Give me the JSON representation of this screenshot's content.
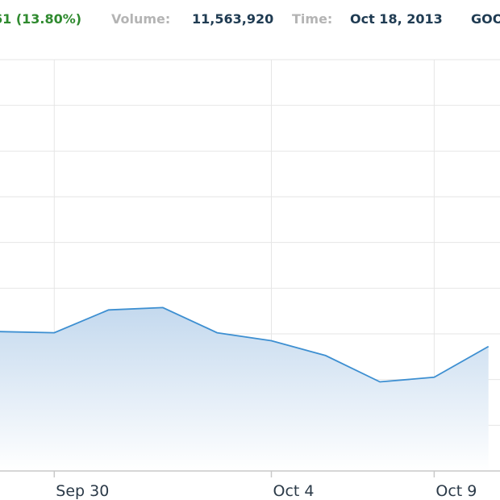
{
  "header": {
    "change": "61 (13.80%)",
    "volume_label": "Volume:",
    "volume_value": "11,563,920",
    "time_label": "Time:",
    "time_value": "Oct 18, 2013",
    "ticker": "GOO"
  },
  "colors": {
    "line": "#3d8fd1",
    "fill_top": "#c4d9ee",
    "fill_bottom": "#ffffff",
    "grid": "#e6e6e6",
    "axis": "#c9c9c9",
    "change": "#2f8a2f",
    "header_label": "#b4b4b4",
    "header_value": "#1f3b52",
    "tick_text": "#2b3a48"
  },
  "chart_data": {
    "type": "area",
    "title": "",
    "xlabel": "",
    "ylabel": "",
    "x_tick_labels": [
      "Sep 30",
      "Oct 4",
      "Oct 9"
    ],
    "x": [
      "2013-09-27",
      "2013-09-30",
      "2013-10-01",
      "2013-10-02",
      "2013-10-03",
      "2013-10-04",
      "2013-10-07",
      "2013-10-08",
      "2013-10-09",
      "2013-10-10"
    ],
    "values": [
      6.1,
      6.05,
      7.05,
      7.15,
      6.05,
      5.7,
      5.05,
      3.9,
      4.1,
      5.45
    ],
    "ylim": [
      0,
      18
    ],
    "y_gridlines": [
      0,
      2,
      4,
      6,
      8,
      10,
      12,
      14,
      16,
      18
    ],
    "grid": true,
    "legend": "none"
  }
}
